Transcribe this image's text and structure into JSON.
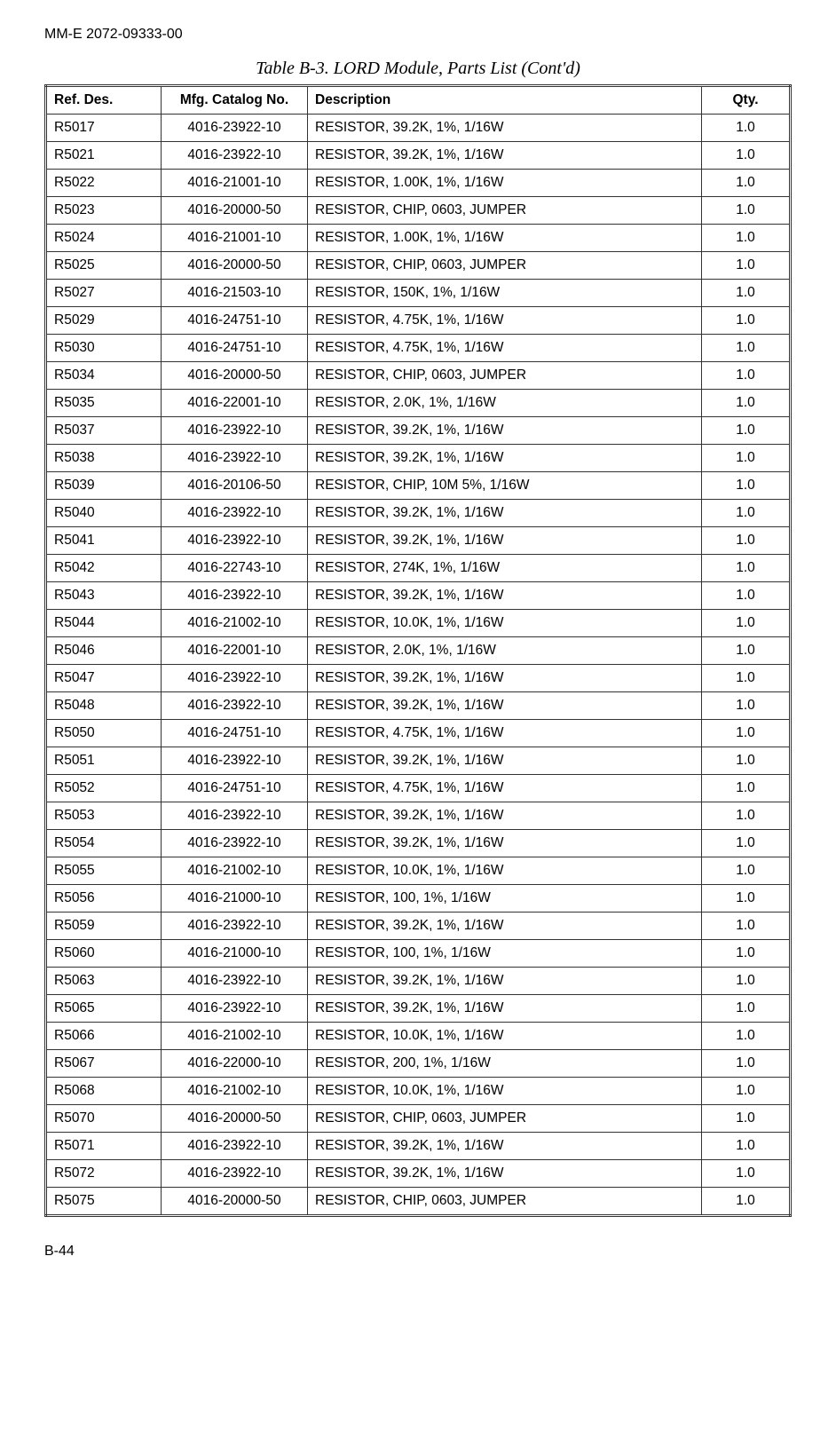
{
  "doc_header": "MM-E 2072-09333-00",
  "table_title": "Table B-3. LORD Module, Parts List (Cont'd)",
  "headers": {
    "ref": "Ref. Des.",
    "mfg": "Mfg. Catalog No.",
    "desc": "Description",
    "qty": "Qty."
  },
  "rows": [
    {
      "ref": "R5017",
      "mfg": "4016-23922-10",
      "desc": "RESISTOR, 39.2K, 1%, 1/16W",
      "qty": "1.0"
    },
    {
      "ref": "R5021",
      "mfg": "4016-23922-10",
      "desc": "RESISTOR, 39.2K, 1%, 1/16W",
      "qty": "1.0"
    },
    {
      "ref": "R5022",
      "mfg": "4016-21001-10",
      "desc": "RESISTOR, 1.00K, 1%, 1/16W",
      "qty": "1.0"
    },
    {
      "ref": "R5023",
      "mfg": "4016-20000-50",
      "desc": "RESISTOR, CHIP, 0603, JUMPER",
      "qty": "1.0"
    },
    {
      "ref": "R5024",
      "mfg": "4016-21001-10",
      "desc": "RESISTOR, 1.00K, 1%, 1/16W",
      "qty": "1.0"
    },
    {
      "ref": "R5025",
      "mfg": "4016-20000-50",
      "desc": "RESISTOR, CHIP, 0603, JUMPER",
      "qty": "1.0"
    },
    {
      "ref": "R5027",
      "mfg": "4016-21503-10",
      "desc": "RESISTOR, 150K, 1%, 1/16W",
      "qty": "1.0"
    },
    {
      "ref": "R5029",
      "mfg": "4016-24751-10",
      "desc": "RESISTOR, 4.75K, 1%, 1/16W",
      "qty": "1.0"
    },
    {
      "ref": "R5030",
      "mfg": "4016-24751-10",
      "desc": "RESISTOR, 4.75K, 1%, 1/16W",
      "qty": "1.0"
    },
    {
      "ref": "R5034",
      "mfg": "4016-20000-50",
      "desc": "RESISTOR, CHIP, 0603, JUMPER",
      "qty": "1.0"
    },
    {
      "ref": "R5035",
      "mfg": "4016-22001-10",
      "desc": "RESISTOR, 2.0K, 1%, 1/16W",
      "qty": "1.0"
    },
    {
      "ref": "R5037",
      "mfg": "4016-23922-10",
      "desc": "RESISTOR, 39.2K, 1%, 1/16W",
      "qty": "1.0"
    },
    {
      "ref": "R5038",
      "mfg": "4016-23922-10",
      "desc": "RESISTOR, 39.2K, 1%, 1/16W",
      "qty": "1.0"
    },
    {
      "ref": "R5039",
      "mfg": "4016-20106-50",
      "desc": "RESISTOR, CHIP, 10M 5%, 1/16W",
      "qty": "1.0"
    },
    {
      "ref": "R5040",
      "mfg": "4016-23922-10",
      "desc": "RESISTOR, 39.2K, 1%, 1/16W",
      "qty": "1.0"
    },
    {
      "ref": "R5041",
      "mfg": "4016-23922-10",
      "desc": "RESISTOR, 39.2K, 1%, 1/16W",
      "qty": "1.0"
    },
    {
      "ref": "R5042",
      "mfg": "4016-22743-10",
      "desc": "RESISTOR, 274K, 1%, 1/16W",
      "qty": "1.0"
    },
    {
      "ref": "R5043",
      "mfg": "4016-23922-10",
      "desc": "RESISTOR, 39.2K, 1%, 1/16W",
      "qty": "1.0"
    },
    {
      "ref": "R5044",
      "mfg": "4016-21002-10",
      "desc": "RESISTOR, 10.0K, 1%, 1/16W",
      "qty": "1.0"
    },
    {
      "ref": "R5046",
      "mfg": "4016-22001-10",
      "desc": "RESISTOR, 2.0K, 1%, 1/16W",
      "qty": "1.0"
    },
    {
      "ref": "R5047",
      "mfg": "4016-23922-10",
      "desc": "RESISTOR, 39.2K, 1%, 1/16W",
      "qty": "1.0"
    },
    {
      "ref": "R5048",
      "mfg": "4016-23922-10",
      "desc": "RESISTOR, 39.2K, 1%, 1/16W",
      "qty": "1.0"
    },
    {
      "ref": "R5050",
      "mfg": "4016-24751-10",
      "desc": "RESISTOR, 4.75K, 1%, 1/16W",
      "qty": "1.0"
    },
    {
      "ref": "R5051",
      "mfg": "4016-23922-10",
      "desc": "RESISTOR, 39.2K, 1%, 1/16W",
      "qty": "1.0"
    },
    {
      "ref": "R5052",
      "mfg": "4016-24751-10",
      "desc": "RESISTOR, 4.75K, 1%, 1/16W",
      "qty": "1.0"
    },
    {
      "ref": "R5053",
      "mfg": "4016-23922-10",
      "desc": "RESISTOR, 39.2K, 1%, 1/16W",
      "qty": "1.0"
    },
    {
      "ref": "R5054",
      "mfg": "4016-23922-10",
      "desc": "RESISTOR, 39.2K, 1%, 1/16W",
      "qty": "1.0"
    },
    {
      "ref": "R5055",
      "mfg": "4016-21002-10",
      "desc": "RESISTOR, 10.0K, 1%, 1/16W",
      "qty": "1.0"
    },
    {
      "ref": "R5056",
      "mfg": "4016-21000-10",
      "desc": "RESISTOR, 100, 1%, 1/16W",
      "qty": "1.0"
    },
    {
      "ref": "R5059",
      "mfg": "4016-23922-10",
      "desc": "RESISTOR, 39.2K, 1%, 1/16W",
      "qty": "1.0"
    },
    {
      "ref": "R5060",
      "mfg": "4016-21000-10",
      "desc": "RESISTOR, 100, 1%, 1/16W",
      "qty": "1.0"
    },
    {
      "ref": "R5063",
      "mfg": "4016-23922-10",
      "desc": "RESISTOR, 39.2K, 1%, 1/16W",
      "qty": "1.0"
    },
    {
      "ref": "R5065",
      "mfg": "4016-23922-10",
      "desc": "RESISTOR, 39.2K, 1%, 1/16W",
      "qty": "1.0"
    },
    {
      "ref": "R5066",
      "mfg": "4016-21002-10",
      "desc": "RESISTOR, 10.0K, 1%, 1/16W",
      "qty": "1.0"
    },
    {
      "ref": "R5067",
      "mfg": "4016-22000-10",
      "desc": "RESISTOR, 200, 1%, 1/16W",
      "qty": "1.0"
    },
    {
      "ref": "R5068",
      "mfg": "4016-21002-10",
      "desc": "RESISTOR, 10.0K, 1%, 1/16W",
      "qty": "1.0"
    },
    {
      "ref": "R5070",
      "mfg": "4016-20000-50",
      "desc": "RESISTOR, CHIP, 0603, JUMPER",
      "qty": "1.0"
    },
    {
      "ref": "R5071",
      "mfg": "4016-23922-10",
      "desc": "RESISTOR, 39.2K, 1%, 1/16W",
      "qty": "1.0"
    },
    {
      "ref": "R5072",
      "mfg": "4016-23922-10",
      "desc": "RESISTOR, 39.2K, 1%, 1/16W",
      "qty": "1.0"
    },
    {
      "ref": "R5075",
      "mfg": "4016-20000-50",
      "desc": "RESISTOR, CHIP, 0603, JUMPER",
      "qty": "1.0"
    }
  ],
  "page_footer": "B-44"
}
